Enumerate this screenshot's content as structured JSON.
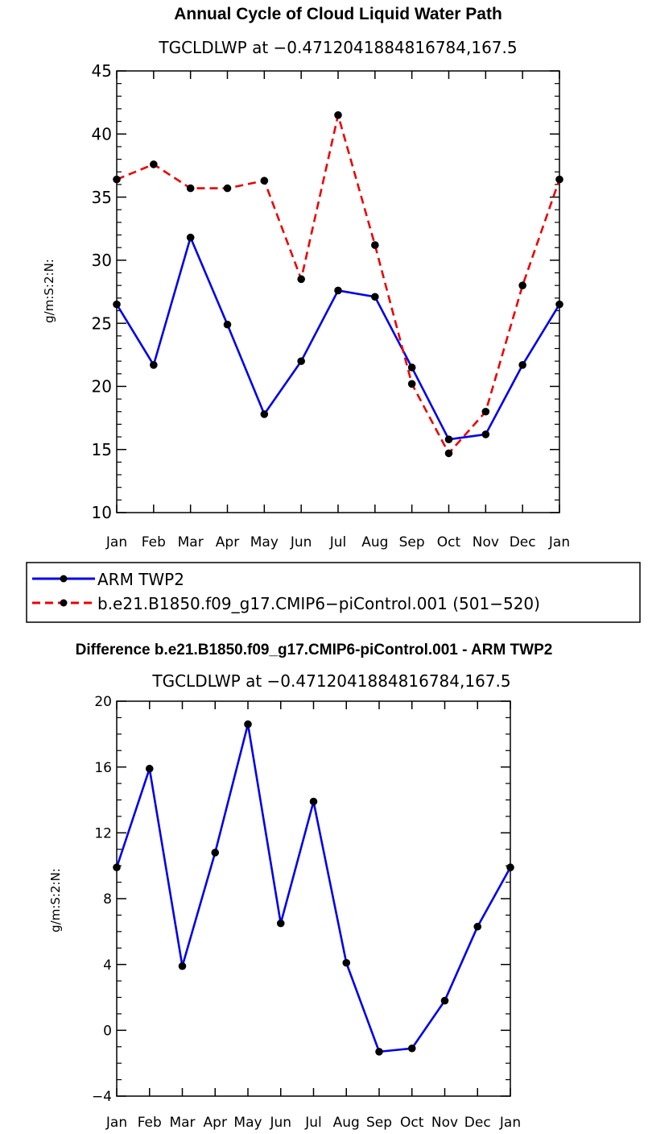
{
  "chart_data": [
    {
      "type": "line",
      "title": "Annual Cycle of Cloud Liquid Water Path",
      "subtitle": "TGCLDLWP at −0.4712041884816784,167.5",
      "ylabel": "g/m:S:2:N:",
      "ylim": [
        10,
        45
      ],
      "yticks": [
        "10",
        "15",
        "20",
        "25",
        "30",
        "35",
        "40",
        "45"
      ],
      "categories": [
        "Jan",
        "Feb",
        "Mar",
        "Apr",
        "May",
        "Jun",
        "Jul",
        "Aug",
        "Sep",
        "Oct",
        "Nov",
        "Dec",
        "Jan"
      ],
      "series": [
        {
          "name": "ARM TWP2",
          "color": "#0000ee",
          "style": "solid",
          "values": [
            26.5,
            21.7,
            31.8,
            24.9,
            17.8,
            22.0,
            27.6,
            27.1,
            21.5,
            15.8,
            16.2,
            21.7,
            26.5
          ]
        },
        {
          "name": "b.e21.B1850.f09_g17.CMIP6−piControl.001 (501−520)",
          "color": "#ee0000",
          "style": "dashed",
          "values": [
            36.4,
            37.6,
            35.7,
            35.7,
            36.3,
            28.5,
            41.5,
            31.2,
            20.2,
            14.7,
            18.0,
            28.0,
            36.4
          ]
        }
      ]
    },
    {
      "type": "line",
      "title": "Difference b.e21.B1850.f09_g17.CMIP6-piControl.001 - ARM TWP2",
      "subtitle": "TGCLDLWP at −0.4712041884816784,167.5",
      "ylabel": "g/m:S:2:N:",
      "ylim": [
        -4,
        20
      ],
      "yticks": [
        "−4",
        "0",
        "4",
        "8",
        "12",
        "16",
        "20"
      ],
      "categories": [
        "Jan",
        "Feb",
        "Mar",
        "Apr",
        "May",
        "Jun",
        "Jul",
        "Aug",
        "Sep",
        "Oct",
        "Nov",
        "Dec",
        "Jan"
      ],
      "series": [
        {
          "name": "Difference",
          "color": "#0000ee",
          "style": "solid",
          "values": [
            9.9,
            15.9,
            3.9,
            10.8,
            18.6,
            6.5,
            13.9,
            4.1,
            -1.3,
            -1.1,
            1.8,
            6.3,
            9.9
          ]
        }
      ]
    }
  ]
}
